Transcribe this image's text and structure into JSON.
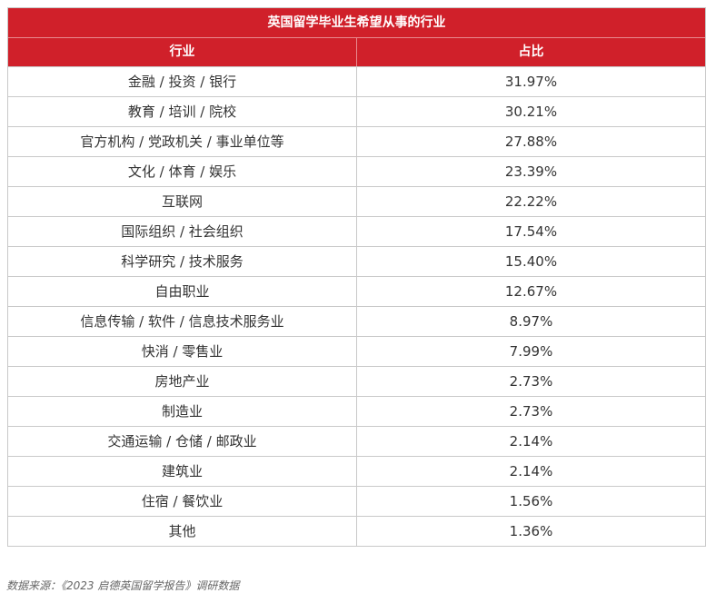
{
  "chart_data": {
    "type": "table",
    "title": "英国留学毕业生希望从事的行业",
    "columns": [
      "行业",
      "占比"
    ],
    "rows": [
      {
        "industry": "金融 / 投资 / 银行",
        "share": "31.97%"
      },
      {
        "industry": "教育 / 培训 / 院校",
        "share": "30.21%"
      },
      {
        "industry": "官方机构 / 党政机关 / 事业单位等",
        "share": "27.88%"
      },
      {
        "industry": "文化 / 体育 / 娱乐",
        "share": "23.39%"
      },
      {
        "industry": "互联网",
        "share": "22.22%"
      },
      {
        "industry": "国际组织 / 社会组织",
        "share": "17.54%"
      },
      {
        "industry": "科学研究 / 技术服务",
        "share": "15.40%"
      },
      {
        "industry": "自由职业",
        "share": "12.67%"
      },
      {
        "industry": "信息传输 / 软件 / 信息技术服务业",
        "share": "8.97%"
      },
      {
        "industry": "快消 / 零售业",
        "share": "7.99%"
      },
      {
        "industry": "房地产业",
        "share": "2.73%"
      },
      {
        "industry": "制造业",
        "share": "2.73%"
      },
      {
        "industry": "交通运输 / 仓储 / 邮政业",
        "share": "2.14%"
      },
      {
        "industry": "建筑业",
        "share": "2.14%"
      },
      {
        "industry": "住宿 / 餐饮业",
        "share": "1.56%"
      },
      {
        "industry": "其他",
        "share": "1.36%"
      }
    ],
    "source": "数据来源：《2023 启德英国留学报告》调研数据"
  },
  "colors": {
    "header_bg": "#d0202a",
    "header_text": "#ffffff",
    "grid": "#c9c9c9"
  }
}
